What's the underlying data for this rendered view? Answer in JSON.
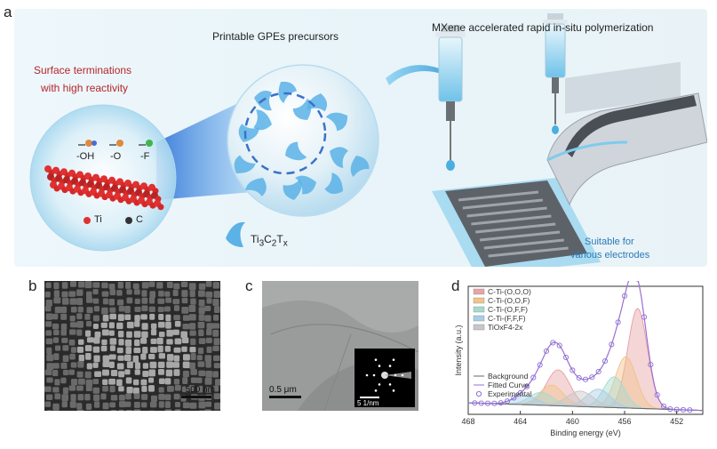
{
  "figure": {
    "panel_a": {
      "letter": "a",
      "title_precursors": "Printable GPEs precursors",
      "title_polymerization": "MXene accelerated rapid in-situ polymerization",
      "surface_line1": "Surface terminations",
      "surface_line2": "with high reactivity",
      "term_oh": "-OH",
      "term_o": "-O",
      "term_f": "-F",
      "legend_ti": "Ti",
      "legend_c": "C",
      "mxene_label": "Ti3C2Tx",
      "suitable_line1": "Suitable for",
      "suitable_line2": "various electrodes",
      "colors": {
        "ti": "#e03131",
        "c": "#333333",
        "oh_o": "#e08a3c",
        "f": "#3fb54a",
        "flake": "#5ab2e6"
      }
    },
    "panel_b": {
      "letter": "b",
      "scale_bar": "500 nm"
    },
    "panel_c": {
      "letter": "c",
      "scale_bar": "0.5 μm",
      "inset_scale": "5 1/nm"
    },
    "panel_d": {
      "letter": "d"
    }
  },
  "chart_data": {
    "type": "line",
    "xlabel": "Binding energy (eV)",
    "ylabel": "Intensity (a.u.)",
    "xlim": [
      468,
      450
    ],
    "x_reversed": true,
    "xticks": [
      468,
      464,
      460,
      456,
      452
    ],
    "legend_top": [
      {
        "name": "C-Ti-(O,O,O)",
        "color": "#e9a3a6"
      },
      {
        "name": "C-Ti-(O,O,F)",
        "color": "#f1c48a"
      },
      {
        "name": "C-Ti-(O,F,F)",
        "color": "#a6dbcf"
      },
      {
        "name": "C-Ti-(F,F,F)",
        "color": "#a8cde8"
      },
      {
        "name": "TiOxF4-2x",
        "color": "#c7c7c7"
      }
    ],
    "legend_bottom": [
      {
        "name": "Background",
        "color": "#666666"
      },
      {
        "name": "Fitted Curve",
        "color": "#9b6fd1"
      },
      {
        "name": "Experimental",
        "color": "#8a6fd6"
      }
    ],
    "components": [
      {
        "name": "C-Ti-(O,O,O)",
        "center": 455.0,
        "sigma": 0.75,
        "amp": 0.78,
        "color": "#e9a3a6"
      },
      {
        "name": "C-Ti-(O,O,O) 2p1/2",
        "center": 461.1,
        "sigma": 0.9,
        "amp": 0.28,
        "color": "#e9a3a6"
      },
      {
        "name": "C-Ti-(O,O,F)",
        "center": 455.9,
        "sigma": 0.8,
        "amp": 0.4,
        "color": "#f1c48a"
      },
      {
        "name": "C-Ti-(O,O,F) 2p1/2",
        "center": 461.6,
        "sigma": 0.9,
        "amp": 0.16,
        "color": "#f1c48a"
      },
      {
        "name": "C-Ti-(O,F,F)",
        "center": 456.8,
        "sigma": 0.8,
        "amp": 0.24,
        "color": "#a6dbcf"
      },
      {
        "name": "C-Ti-(O,F,F) 2p1/2",
        "center": 462.4,
        "sigma": 0.9,
        "amp": 0.1,
        "color": "#a6dbcf"
      },
      {
        "name": "C-Ti-(F,F,F)",
        "center": 458.0,
        "sigma": 0.9,
        "amp": 0.14,
        "color": "#a8cde8"
      },
      {
        "name": "C-Ti-(F,F,F) 2p1/2",
        "center": 463.6,
        "sigma": 0.9,
        "amp": 0.07,
        "color": "#a8cde8"
      },
      {
        "name": "TiOxF4-2x",
        "center": 459.4,
        "sigma": 1.0,
        "amp": 0.12,
        "color": "#c7c7c7"
      }
    ],
    "background": {
      "start": 0.09,
      "end": 0.03
    },
    "experimental_x": [
      467.5,
      467,
      466.5,
      466,
      465.5,
      465,
      464.5,
      464,
      463.5,
      463,
      462.5,
      462,
      461.5,
      461,
      460.5,
      460,
      459.5,
      459,
      458.5,
      458,
      457.5,
      457,
      456.5,
      456,
      455.5,
      455,
      454.5,
      454,
      453.5,
      453,
      452.5,
      452,
      451.5,
      451
    ]
  }
}
